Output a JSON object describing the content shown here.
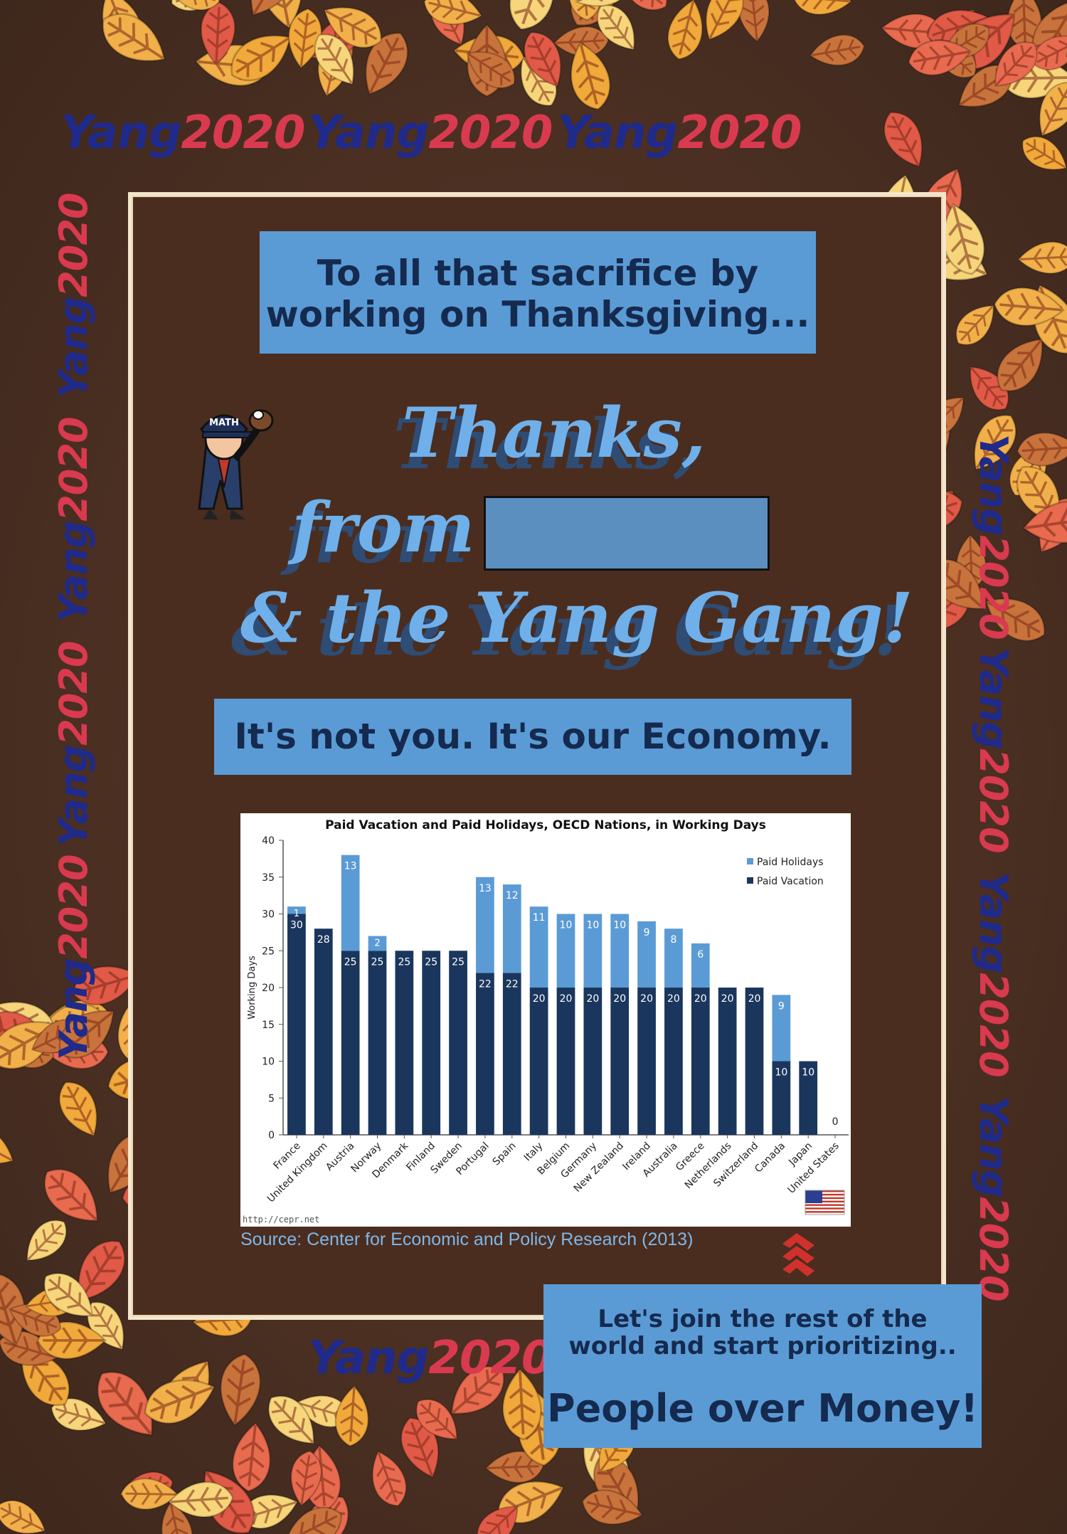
{
  "logo": {
    "yang": "Yang",
    "year": "2020"
  },
  "banner_top": {
    "line1": "To all that sacrifice by",
    "line2": "working on Thanksgiving..."
  },
  "headline": {
    "line1": "Thanks,",
    "line2": "from",
    "line3": "& the Yang Gang!"
  },
  "mascot": {
    "hat_text": "MATH"
  },
  "banner_mid": {
    "text": "It's not you. It's our Economy."
  },
  "banner_bottom": {
    "line1": "Let's join the rest of the",
    "line2": "world and start prioritizing..",
    "line3": "People over Money!"
  },
  "source": "Source: Center for Economic and Policy Research (2013)",
  "chart_data": {
    "type": "bar",
    "stacked": true,
    "title": "Paid Vacation and Paid Holidays, OECD Nations, in Working Days",
    "ylabel": "Working Days",
    "xlabel": "",
    "ylim": [
      0,
      40
    ],
    "yticks": [
      0,
      5,
      10,
      15,
      20,
      25,
      30,
      35,
      40
    ],
    "legend_position": "top-right",
    "watermark": "http://cepr.net",
    "categories": [
      "France",
      "United Kingdom",
      "Austria",
      "Norway",
      "Denmark",
      "Finland",
      "Sweden",
      "Portugal",
      "Spain",
      "Italy",
      "Belgium",
      "Germany",
      "New Zealand",
      "Ireland",
      "Australia",
      "Greece",
      "Netherlands",
      "Switzerland",
      "Canada",
      "Japan",
      "United States"
    ],
    "series": [
      {
        "name": "Paid Vacation",
        "color": "#1b365d",
        "values": [
          30,
          28,
          25,
          25,
          25,
          25,
          25,
          22,
          22,
          20,
          20,
          20,
          20,
          20,
          20,
          20,
          20,
          20,
          10,
          10,
          0
        ]
      },
      {
        "name": "Paid Holidays",
        "color": "#5b9bd5",
        "values": [
          1,
          0,
          13,
          2,
          0,
          0,
          0,
          13,
          12,
          11,
          10,
          10,
          10,
          9,
          8,
          6,
          0,
          0,
          9,
          0,
          0
        ]
      }
    ],
    "legend_order": [
      "Paid Holidays",
      "Paid Vacation"
    ]
  }
}
